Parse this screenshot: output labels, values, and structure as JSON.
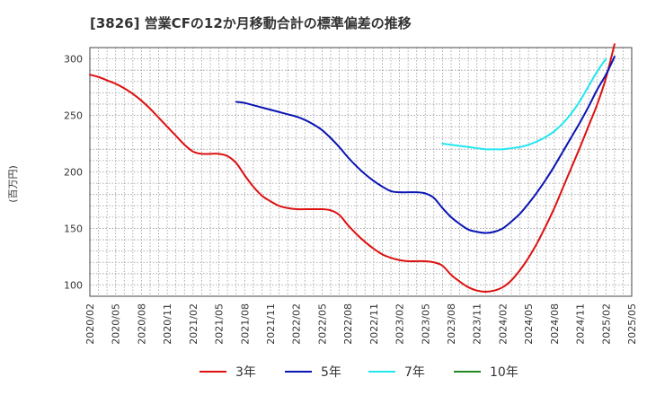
{
  "chart_data": {
    "type": "line",
    "title": "[3826]  営業CFの12か月移動合計の標準偏差の推移",
    "ylabel": "(百万円)",
    "xlabel": "",
    "ylim": [
      90,
      310
    ],
    "yticks": [
      100,
      150,
      200,
      250,
      300
    ],
    "xlim": [
      "2020/02",
      "2025/05"
    ],
    "xticks": [
      "2020/02",
      "2020/05",
      "2020/08",
      "2020/11",
      "2021/02",
      "2021/05",
      "2021/08",
      "2021/11",
      "2022/02",
      "2022/05",
      "2022/08",
      "2022/11",
      "2023/02",
      "2023/05",
      "2023/08",
      "2023/11",
      "2024/02",
      "2024/05",
      "2024/08",
      "2024/11",
      "2025/02",
      "2025/05"
    ],
    "grid": true,
    "legend_position": "bottom",
    "series": [
      {
        "name": "3年",
        "color": "#dd1111",
        "points": [
          [
            "2020/02",
            286
          ],
          [
            "2020/03",
            284
          ],
          [
            "2020/04",
            281
          ],
          [
            "2020/05",
            278
          ],
          [
            "2020/06",
            274
          ],
          [
            "2020/07",
            269
          ],
          [
            "2020/08",
            263
          ],
          [
            "2020/09",
            256
          ],
          [
            "2020/10",
            248
          ],
          [
            "2020/11",
            240
          ],
          [
            "2020/12",
            232
          ],
          [
            "2021/01",
            224
          ],
          [
            "2021/02",
            218
          ],
          [
            "2021/03",
            216
          ],
          [
            "2021/04",
            216
          ],
          [
            "2021/05",
            216
          ],
          [
            "2021/06",
            214
          ],
          [
            "2021/07",
            208
          ],
          [
            "2021/08",
            197
          ],
          [
            "2021/09",
            187
          ],
          [
            "2021/10",
            179
          ],
          [
            "2021/11",
            174
          ],
          [
            "2021/12",
            170
          ],
          [
            "2022/01",
            168
          ],
          [
            "2022/02",
            167
          ],
          [
            "2022/03",
            167
          ],
          [
            "2022/04",
            167
          ],
          [
            "2022/05",
            167
          ],
          [
            "2022/06",
            166
          ],
          [
            "2022/07",
            162
          ],
          [
            "2022/08",
            153
          ],
          [
            "2022/09",
            145
          ],
          [
            "2022/10",
            138
          ],
          [
            "2022/11",
            132
          ],
          [
            "2022/12",
            127
          ],
          [
            "2023/01",
            124
          ],
          [
            "2023/02",
            122
          ],
          [
            "2023/03",
            121
          ],
          [
            "2023/04",
            121
          ],
          [
            "2023/05",
            121
          ],
          [
            "2023/06",
            120
          ],
          [
            "2023/07",
            117
          ],
          [
            "2023/08",
            109
          ],
          [
            "2023/09",
            103
          ],
          [
            "2023/10",
            98
          ],
          [
            "2023/11",
            95
          ],
          [
            "2023/12",
            94
          ],
          [
            "2024/01",
            95
          ],
          [
            "2024/02",
            98
          ],
          [
            "2024/03",
            104
          ],
          [
            "2024/04",
            113
          ],
          [
            "2024/05",
            124
          ],
          [
            "2024/06",
            137
          ],
          [
            "2024/07",
            152
          ],
          [
            "2024/08",
            168
          ],
          [
            "2024/09",
            186
          ],
          [
            "2024/10",
            204
          ],
          [
            "2024/11",
            222
          ],
          [
            "2024/12",
            241
          ],
          [
            "2025/01",
            260
          ],
          [
            "2025/02",
            283
          ],
          [
            "2025/03",
            313
          ]
        ]
      },
      {
        "name": "5年",
        "color": "#0a14b4",
        "points": [
          [
            "2021/07",
            262
          ],
          [
            "2021/08",
            261
          ],
          [
            "2021/09",
            259
          ],
          [
            "2021/10",
            257
          ],
          [
            "2021/11",
            255
          ],
          [
            "2021/12",
            253
          ],
          [
            "2022/01",
            251
          ],
          [
            "2022/02",
            249
          ],
          [
            "2022/03",
            246
          ],
          [
            "2022/04",
            242
          ],
          [
            "2022/05",
            237
          ],
          [
            "2022/06",
            230
          ],
          [
            "2022/07",
            222
          ],
          [
            "2022/08",
            213
          ],
          [
            "2022/09",
            205
          ],
          [
            "2022/10",
            198
          ],
          [
            "2022/11",
            192
          ],
          [
            "2022/12",
            187
          ],
          [
            "2023/01",
            183
          ],
          [
            "2023/02",
            182
          ],
          [
            "2023/03",
            182
          ],
          [
            "2023/04",
            182
          ],
          [
            "2023/05",
            181
          ],
          [
            "2023/06",
            177
          ],
          [
            "2023/07",
            168
          ],
          [
            "2023/08",
            160
          ],
          [
            "2023/09",
            154
          ],
          [
            "2023/10",
            149
          ],
          [
            "2023/11",
            147
          ],
          [
            "2023/12",
            146
          ],
          [
            "2024/01",
            147
          ],
          [
            "2024/02",
            150
          ],
          [
            "2024/03",
            156
          ],
          [
            "2024/04",
            163
          ],
          [
            "2024/05",
            172
          ],
          [
            "2024/06",
            182
          ],
          [
            "2024/07",
            193
          ],
          [
            "2024/08",
            205
          ],
          [
            "2024/09",
            218
          ],
          [
            "2024/10",
            231
          ],
          [
            "2024/11",
            244
          ],
          [
            "2024/12",
            258
          ],
          [
            "2025/01",
            273
          ],
          [
            "2025/02",
            286
          ],
          [
            "2025/03",
            302
          ]
        ]
      },
      {
        "name": "7年",
        "color": "#22e6f0",
        "points": [
          [
            "2023/07",
            225
          ],
          [
            "2023/08",
            224
          ],
          [
            "2023/09",
            223
          ],
          [
            "2023/10",
            222
          ],
          [
            "2023/11",
            221
          ],
          [
            "2023/12",
            220
          ],
          [
            "2024/01",
            220
          ],
          [
            "2024/02",
            220
          ],
          [
            "2024/03",
            221
          ],
          [
            "2024/04",
            222
          ],
          [
            "2024/05",
            224
          ],
          [
            "2024/06",
            227
          ],
          [
            "2024/07",
            231
          ],
          [
            "2024/08",
            236
          ],
          [
            "2024/09",
            243
          ],
          [
            "2024/10",
            252
          ],
          [
            "2024/11",
            263
          ],
          [
            "2024/12",
            276
          ],
          [
            "2025/01",
            289
          ],
          [
            "2025/02",
            300
          ]
        ]
      },
      {
        "name": "10年",
        "color": "#228822",
        "points": []
      }
    ]
  }
}
